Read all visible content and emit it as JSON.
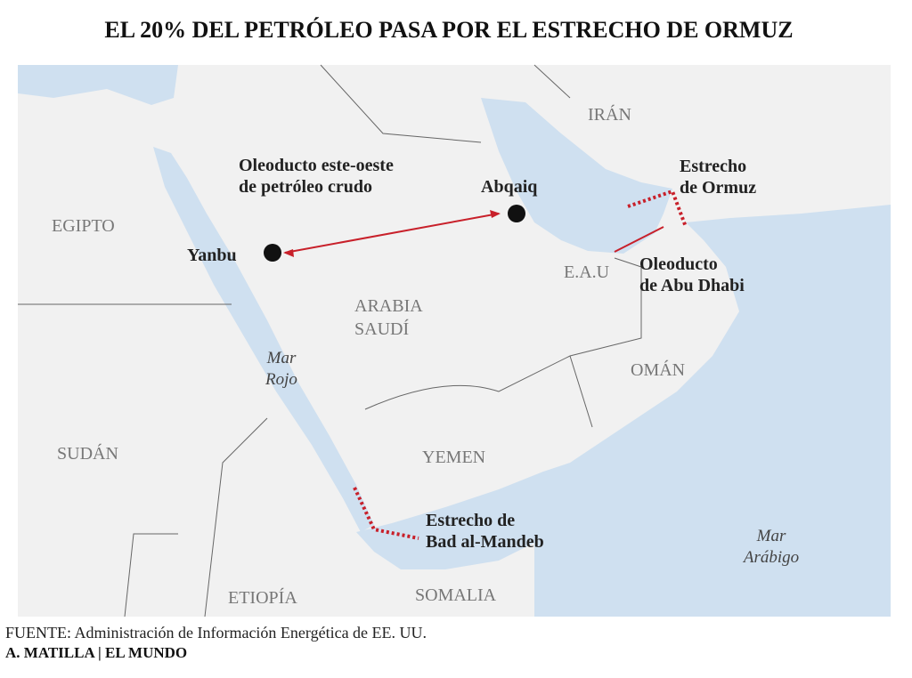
{
  "title": "EL 20% DEL PETRÓLEO PASA POR EL ESTRECHO DE ORMUZ",
  "countries": {
    "egypt": "EGIPTO",
    "iran": "IRÁN",
    "uae": "E.A.U",
    "saudi": [
      "ARABIA",
      "SAUDÍ"
    ],
    "oman": "OMÁN",
    "yemen": "YEMEN",
    "sudan": "SUDÁN",
    "ethiopia": "ETIOPÍA",
    "somalia": "SOMALIA"
  },
  "seas": {
    "red_sea": [
      "Mar",
      "Rojo"
    ],
    "arabian_sea": [
      "Mar",
      "Arábigo"
    ]
  },
  "places": {
    "yanbu": "Yanbu",
    "abqaiq": "Abqaiq"
  },
  "annotations": {
    "east_west_pipeline": [
      "Oleoducto este-oeste",
      "de petróleo crudo"
    ],
    "hormuz": [
      "Estrecho",
      "de Ormuz"
    ],
    "abu_dhabi_pipeline": [
      "Oleoducto",
      "de Abu Dhabi"
    ],
    "mandeb": [
      "Estrecho de",
      "Bad al-Mandeb"
    ]
  },
  "source": "FUENTE: Administración de Información Energética de EE. UU.",
  "credit": "A. MATILLA | EL MUNDO"
}
